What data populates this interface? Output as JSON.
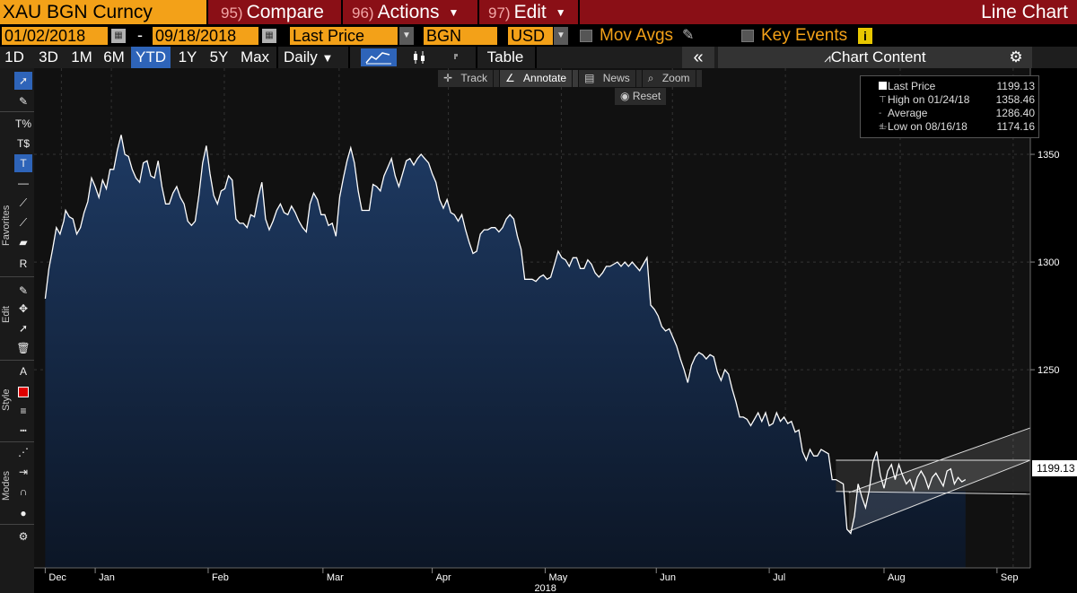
{
  "title_bar": {
    "ticker": "XAU BGN Curncy",
    "compare_num": "95)",
    "compare_label": "Compare",
    "actions_num": "96)",
    "actions_label": "Actions",
    "edit_num": "97)",
    "edit_label": "Edit",
    "chart_type": "Line Chart"
  },
  "controls": {
    "start_date": "01/02/2018",
    "dash": "-",
    "end_date": "09/18/2018",
    "field": "Last Price",
    "source": "BGN",
    "currency": "USD",
    "mov_avgs": "Mov Avgs",
    "key_events": "Key Events",
    "info_badge": "i"
  },
  "toolbar": {
    "periods": [
      "1D",
      "3D",
      "1M",
      "6M",
      "YTD",
      "1Y",
      "5Y",
      "Max"
    ],
    "active_period": "YTD",
    "frequency": "Daily",
    "table": "Table",
    "collapse": "«",
    "chart_content": "Chart Content",
    "settings": "⚙"
  },
  "sidebar": {
    "favorites_label": "Favorites",
    "edit_label": "Edit",
    "style_label": "Style",
    "modes_label": "Modes",
    "accent_red": "#e00000"
  },
  "mini_toolbar": {
    "track": "Track",
    "annotate": "Annotate",
    "news": "News",
    "zoom": "Zoom",
    "reset": "Reset"
  },
  "legend": {
    "rows": [
      {
        "label": "Last Price",
        "value": "1199.13"
      },
      {
        "label": "High on 01/24/18",
        "value": "1358.46"
      },
      {
        "label": "Average",
        "value": "1286.40"
      },
      {
        "label": "Low on 08/16/18",
        "value": "1174.16"
      }
    ]
  },
  "last_price_tag": "1199.13",
  "chart_data": {
    "type": "area",
    "title": "",
    "xlabel": "2018",
    "ylabel": "",
    "ylim": [
      1158,
      1390
    ],
    "y_ticks": [
      1250,
      1300,
      1350
    ],
    "y_tick_labels": [
      "1250",
      "1300",
      "1350"
    ],
    "x_month_labels": [
      "Dec",
      "Jan",
      "Feb",
      "Mar",
      "Apr",
      "May",
      "Jun",
      "Jul",
      "Aug",
      "Sep"
    ],
    "x_month_positions": [
      0,
      27,
      88,
      150,
      209,
      270,
      330,
      391,
      453,
      514
    ],
    "x_year_label": "2018",
    "x_year_position": 270,
    "grid": true,
    "x_range": [
      -6,
      532
    ],
    "series": [
      {
        "values": [
          [
            0,
            1283
          ],
          [
            2,
            1297
          ],
          [
            4,
            1306
          ],
          [
            6,
            1316
          ],
          [
            8,
            1313
          ],
          [
            10,
            1319
          ],
          [
            11,
            1324
          ],
          [
            13,
            1321
          ],
          [
            15,
            1320
          ],
          [
            17,
            1313
          ],
          [
            19,
            1316
          ],
          [
            21,
            1323
          ],
          [
            23,
            1328
          ],
          [
            25,
            1339
          ],
          [
            27,
            1335
          ],
          [
            29,
            1330
          ],
          [
            31,
            1338
          ],
          [
            33,
            1334
          ],
          [
            35,
            1343
          ],
          [
            37,
            1343
          ],
          [
            39,
            1352
          ],
          [
            41,
            1359
          ],
          [
            43,
            1350
          ],
          [
            45,
            1349
          ],
          [
            47,
            1343
          ],
          [
            49,
            1339
          ],
          [
            51,
            1337
          ],
          [
            53,
            1346
          ],
          [
            55,
            1347
          ],
          [
            57,
            1340
          ],
          [
            59,
            1339
          ],
          [
            61,
            1347
          ],
          [
            63,
            1335
          ],
          [
            65,
            1327
          ],
          [
            67,
            1327
          ],
          [
            69,
            1332
          ],
          [
            71,
            1335
          ],
          [
            73,
            1330
          ],
          [
            75,
            1327
          ],
          [
            77,
            1319
          ],
          [
            79,
            1317
          ],
          [
            81,
            1319
          ],
          [
            83,
            1331
          ],
          [
            85,
            1346
          ],
          [
            87,
            1354
          ],
          [
            89,
            1341
          ],
          [
            91,
            1331
          ],
          [
            93,
            1327
          ],
          [
            95,
            1333
          ],
          [
            97,
            1334
          ],
          [
            99,
            1340
          ],
          [
            101,
            1338
          ],
          [
            103,
            1320
          ],
          [
            105,
            1318
          ],
          [
            107,
            1318
          ],
          [
            109,
            1316
          ],
          [
            111,
            1322
          ],
          [
            113,
            1321
          ],
          [
            115,
            1330
          ],
          [
            117,
            1337
          ],
          [
            119,
            1320
          ],
          [
            121,
            1315
          ],
          [
            123,
            1319
          ],
          [
            125,
            1324
          ],
          [
            127,
            1327
          ],
          [
            129,
            1323
          ],
          [
            131,
            1322
          ],
          [
            133,
            1326
          ],
          [
            135,
            1323
          ],
          [
            137,
            1319
          ],
          [
            139,
            1316
          ],
          [
            141,
            1314
          ],
          [
            143,
            1327
          ],
          [
            145,
            1332
          ],
          [
            147,
            1329
          ],
          [
            149,
            1322
          ],
          [
            151,
            1322
          ],
          [
            153,
            1317
          ],
          [
            155,
            1318
          ],
          [
            157,
            1312
          ],
          [
            159,
            1330
          ],
          [
            161,
            1339
          ],
          [
            163,
            1347
          ],
          [
            165,
            1353
          ],
          [
            167,
            1346
          ],
          [
            169,
            1333
          ],
          [
            171,
            1324
          ],
          [
            173,
            1324
          ],
          [
            175,
            1324
          ],
          [
            177,
            1336
          ],
          [
            179,
            1335
          ],
          [
            181,
            1333
          ],
          [
            183,
            1340
          ],
          [
            185,
            1344
          ],
          [
            187,
            1348
          ],
          [
            189,
            1340
          ],
          [
            191,
            1335
          ],
          [
            193,
            1341
          ],
          [
            195,
            1347
          ],
          [
            197,
            1348
          ],
          [
            199,
            1345
          ],
          [
            201,
            1348
          ],
          [
            203,
            1350
          ],
          [
            205,
            1348
          ],
          [
            207,
            1346
          ],
          [
            209,
            1341
          ],
          [
            211,
            1337
          ],
          [
            213,
            1329
          ],
          [
            215,
            1325
          ],
          [
            217,
            1329
          ],
          [
            219,
            1323
          ],
          [
            221,
            1322
          ],
          [
            223,
            1319
          ],
          [
            225,
            1322
          ],
          [
            227,
            1315
          ],
          [
            229,
            1309
          ],
          [
            231,
            1304
          ],
          [
            233,
            1305
          ],
          [
            235,
            1313
          ],
          [
            237,
            1315
          ],
          [
            239,
            1315
          ],
          [
            241,
            1316
          ],
          [
            243,
            1316
          ],
          [
            245,
            1314
          ],
          [
            247,
            1316
          ],
          [
            249,
            1320
          ],
          [
            251,
            1322
          ],
          [
            253,
            1320
          ],
          [
            255,
            1312
          ],
          [
            257,
            1306
          ],
          [
            259,
            1292
          ],
          [
            261,
            1292
          ],
          [
            263,
            1292
          ],
          [
            265,
            1291
          ],
          [
            267,
            1293
          ],
          [
            269,
            1294
          ],
          [
            271,
            1292
          ],
          [
            273,
            1293
          ],
          [
            275,
            1299
          ],
          [
            277,
            1305
          ],
          [
            279,
            1302
          ],
          [
            281,
            1301
          ],
          [
            283,
            1298
          ],
          [
            285,
            1302
          ],
          [
            287,
            1302
          ],
          [
            289,
            1297
          ],
          [
            291,
            1297
          ],
          [
            293,
            1301
          ],
          [
            295,
            1299
          ],
          [
            297,
            1295
          ],
          [
            299,
            1293
          ],
          [
            301,
            1295
          ],
          [
            303,
            1298
          ],
          [
            305,
            1298
          ],
          [
            307,
            1299
          ],
          [
            309,
            1300
          ],
          [
            311,
            1298
          ],
          [
            313,
            1300
          ],
          [
            315,
            1298
          ],
          [
            317,
            1300
          ],
          [
            319,
            1298
          ],
          [
            321,
            1296
          ],
          [
            323,
            1299
          ],
          [
            325,
            1302
          ],
          [
            327,
            1280
          ],
          [
            329,
            1278
          ],
          [
            331,
            1275
          ],
          [
            333,
            1270
          ],
          [
            335,
            1268
          ],
          [
            337,
            1269
          ],
          [
            339,
            1265
          ],
          [
            341,
            1261
          ],
          [
            343,
            1255
          ],
          [
            345,
            1250
          ],
          [
            347,
            1244
          ],
          [
            349,
            1252
          ],
          [
            351,
            1256
          ],
          [
            353,
            1258
          ],
          [
            355,
            1257
          ],
          [
            357,
            1255
          ],
          [
            359,
            1257
          ],
          [
            361,
            1256
          ],
          [
            363,
            1249
          ],
          [
            365,
            1245
          ],
          [
            367,
            1250
          ],
          [
            369,
            1248
          ],
          [
            371,
            1241
          ],
          [
            373,
            1235
          ],
          [
            375,
            1228
          ],
          [
            377,
            1228
          ],
          [
            379,
            1227
          ],
          [
            381,
            1224
          ],
          [
            383,
            1227
          ],
          [
            385,
            1230
          ],
          [
            387,
            1226
          ],
          [
            389,
            1230
          ],
          [
            391,
            1224
          ],
          [
            393,
            1225
          ],
          [
            395,
            1230
          ],
          [
            397,
            1226
          ],
          [
            399,
            1228
          ],
          [
            401,
            1225
          ],
          [
            403,
            1226
          ],
          [
            405,
            1221
          ],
          [
            407,
            1222
          ],
          [
            409,
            1212
          ],
          [
            411,
            1208
          ],
          [
            413,
            1213
          ],
          [
            415,
            1210
          ],
          [
            417,
            1210
          ],
          [
            419,
            1213
          ],
          [
            421,
            1212
          ],
          [
            423,
            1211
          ],
          [
            425,
            1199
          ],
          [
            427,
            1199
          ],
          [
            429,
            1198
          ],
          [
            431,
            1197
          ],
          [
            433,
            1176
          ],
          [
            435,
            1174
          ],
          [
            437,
            1182
          ],
          [
            439,
            1197
          ],
          [
            441,
            1191
          ],
          [
            443,
            1186
          ],
          [
            445,
            1194
          ],
          [
            447,
            1207
          ],
          [
            449,
            1212
          ],
          [
            451,
            1201
          ],
          [
            453,
            1195
          ],
          [
            455,
            1203
          ],
          [
            457,
            1206
          ],
          [
            459,
            1199
          ],
          [
            461,
            1206
          ],
          [
            463,
            1201
          ],
          [
            465,
            1197
          ],
          [
            467,
            1199
          ],
          [
            469,
            1194
          ],
          [
            471,
            1200
          ],
          [
            473,
            1203
          ],
          [
            475,
            1200
          ],
          [
            477,
            1195
          ],
          [
            479,
            1200
          ],
          [
            481,
            1202
          ],
          [
            483,
            1199
          ],
          [
            485,
            1196
          ],
          [
            487,
            1203
          ],
          [
            489,
            1204
          ],
          [
            491,
            1197
          ],
          [
            493,
            1200
          ],
          [
            495,
            1198
          ],
          [
            497,
            1199
          ]
        ]
      }
    ],
    "annotations": {
      "pennant": {
        "x_start": 427,
        "x_end": 532,
        "upper_y": 1208,
        "lower_y": 1193.5,
        "fill": "#2a2a2a"
      },
      "channel": {
        "lower_start": [
          434,
          1175
        ],
        "lower_end": [
          532,
          1208
        ],
        "upper_start": [
          434,
          1193
        ],
        "upper_end": [
          532,
          1223
        ]
      }
    },
    "colors": {
      "area_top": "#1e3a63",
      "area_bottom": "#0c1626",
      "line": "#ffffff",
      "plot_bg": "#111111",
      "grid": "#333333"
    }
  }
}
